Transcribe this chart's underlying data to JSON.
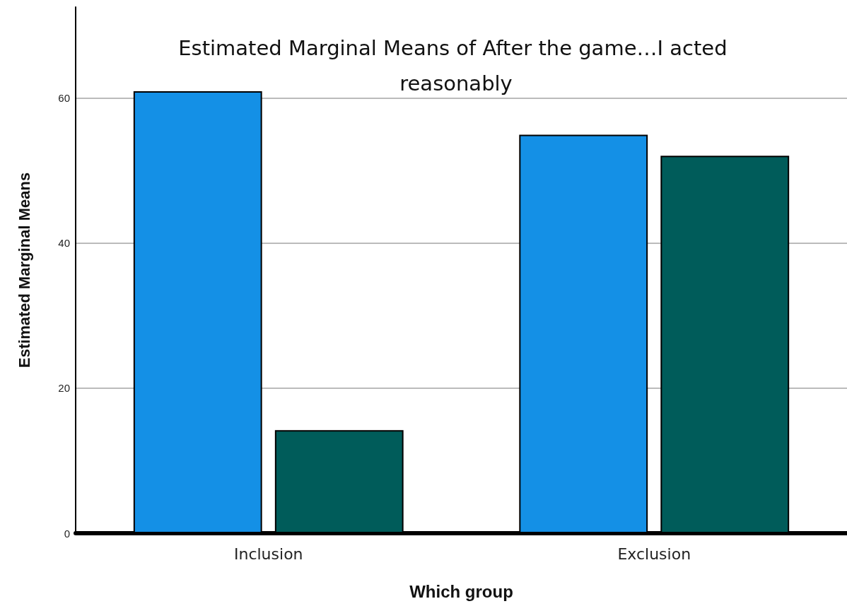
{
  "chart_data": {
    "type": "bar",
    "title": "Estimated Marginal Means of After the game…I acted reasonably",
    "xlabel": "Which group",
    "ylabel": "Estimated Marginal Means",
    "categories": [
      "Inclusion",
      "Exclusion"
    ],
    "series": [
      {
        "color": "#1490e6",
        "values": [
          60.9,
          54.9
        ]
      },
      {
        "color": "#005c5a",
        "values": [
          14.2,
          52.0
        ]
      }
    ],
    "ylim": [
      0,
      72.5
    ],
    "yticks": [
      0,
      20,
      40,
      60
    ],
    "grid": "y"
  }
}
